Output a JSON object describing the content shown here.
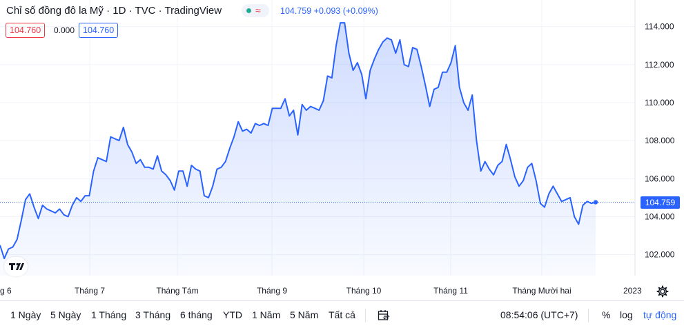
{
  "legend": {
    "title": "Chỉ số đồng đô la Mỹ · 1D · TVC · TradingView",
    "quote": "104.759 +0.093 (+0.09%)",
    "bid": "104.760",
    "spread": "0.000",
    "ask": "104.760",
    "wave_symbol": "≈"
  },
  "colors": {
    "line": "#2962ff",
    "accent": "#2962ff",
    "negative": "#f23645",
    "positive": "#22ab94"
  },
  "toolbar": {
    "ranges": [
      "1 Ngày",
      "5 Ngày",
      "1 Tháng",
      "3 Tháng",
      "6 tháng",
      "YTD",
      "1 Năm",
      "5 Năm",
      "Tất cả"
    ],
    "time": "08:54:06 (UTC+7)",
    "percent_label": "%",
    "log_label": "log",
    "auto_label": "tự động"
  },
  "chart_data": {
    "type": "area",
    "last_price_label": "104.759",
    "y_ticks": [
      "114.000",
      "112.000",
      "110.000",
      "108.000",
      "106.000",
      "104.000",
      "102.000"
    ],
    "x_ticks": [
      "g 6",
      "Tháng 7",
      "Tháng Tám",
      "Tháng 9",
      "Tháng 10",
      "Tháng 11",
      "Tháng Mười hai",
      "2023"
    ],
    "ylim": [
      100.9,
      115.4
    ],
    "series": [
      {
        "values": [
          102.5,
          101.8,
          102.3,
          102.4,
          102.8,
          103.8,
          104.9,
          105.2,
          104.5,
          103.9,
          104.6,
          104.4,
          104.3,
          104.2,
          104.4,
          104.1,
          104.0,
          104.6,
          105.0,
          104.8,
          105.1,
          105.1,
          106.4,
          107.1,
          107.0,
          106.9,
          108.2,
          108.1,
          108.0,
          108.7,
          107.8,
          107.4,
          106.8,
          107.0,
          106.6,
          106.6,
          106.5,
          107.2,
          106.4,
          106.2,
          105.9,
          105.4,
          106.4,
          106.4,
          105.6,
          106.7,
          106.5,
          106.4,
          105.1,
          105.0,
          105.6,
          106.5,
          106.6,
          106.9,
          107.6,
          108.2,
          109.0,
          108.5,
          108.6,
          108.4,
          108.9,
          108.8,
          108.9,
          108.8,
          109.7,
          109.7,
          109.7,
          110.2,
          109.3,
          109.6,
          108.3,
          109.9,
          109.6,
          109.8,
          109.7,
          109.6,
          110.1,
          111.4,
          111.3,
          113.0,
          114.2,
          114.2,
          112.6,
          111.7,
          112.1,
          111.5,
          110.2,
          111.7,
          112.3,
          112.8,
          113.2,
          113.4,
          113.3,
          112.6,
          113.3,
          112.0,
          111.9,
          112.9,
          112.8,
          111.9,
          110.9,
          109.8,
          110.7,
          110.8,
          111.6,
          111.6,
          112.1,
          113.0,
          110.8,
          110.0,
          109.6,
          110.4,
          108.0,
          106.4,
          106.9,
          106.5,
          106.2,
          106.7,
          106.9,
          107.8,
          107.0,
          106.1,
          105.6,
          105.9,
          106.6,
          106.8,
          105.9,
          104.7,
          104.5,
          105.2,
          105.6,
          105.2,
          104.8,
          104.9,
          105.0,
          104.0,
          103.6,
          104.6,
          104.8,
          104.7,
          104.76
        ]
      }
    ]
  }
}
